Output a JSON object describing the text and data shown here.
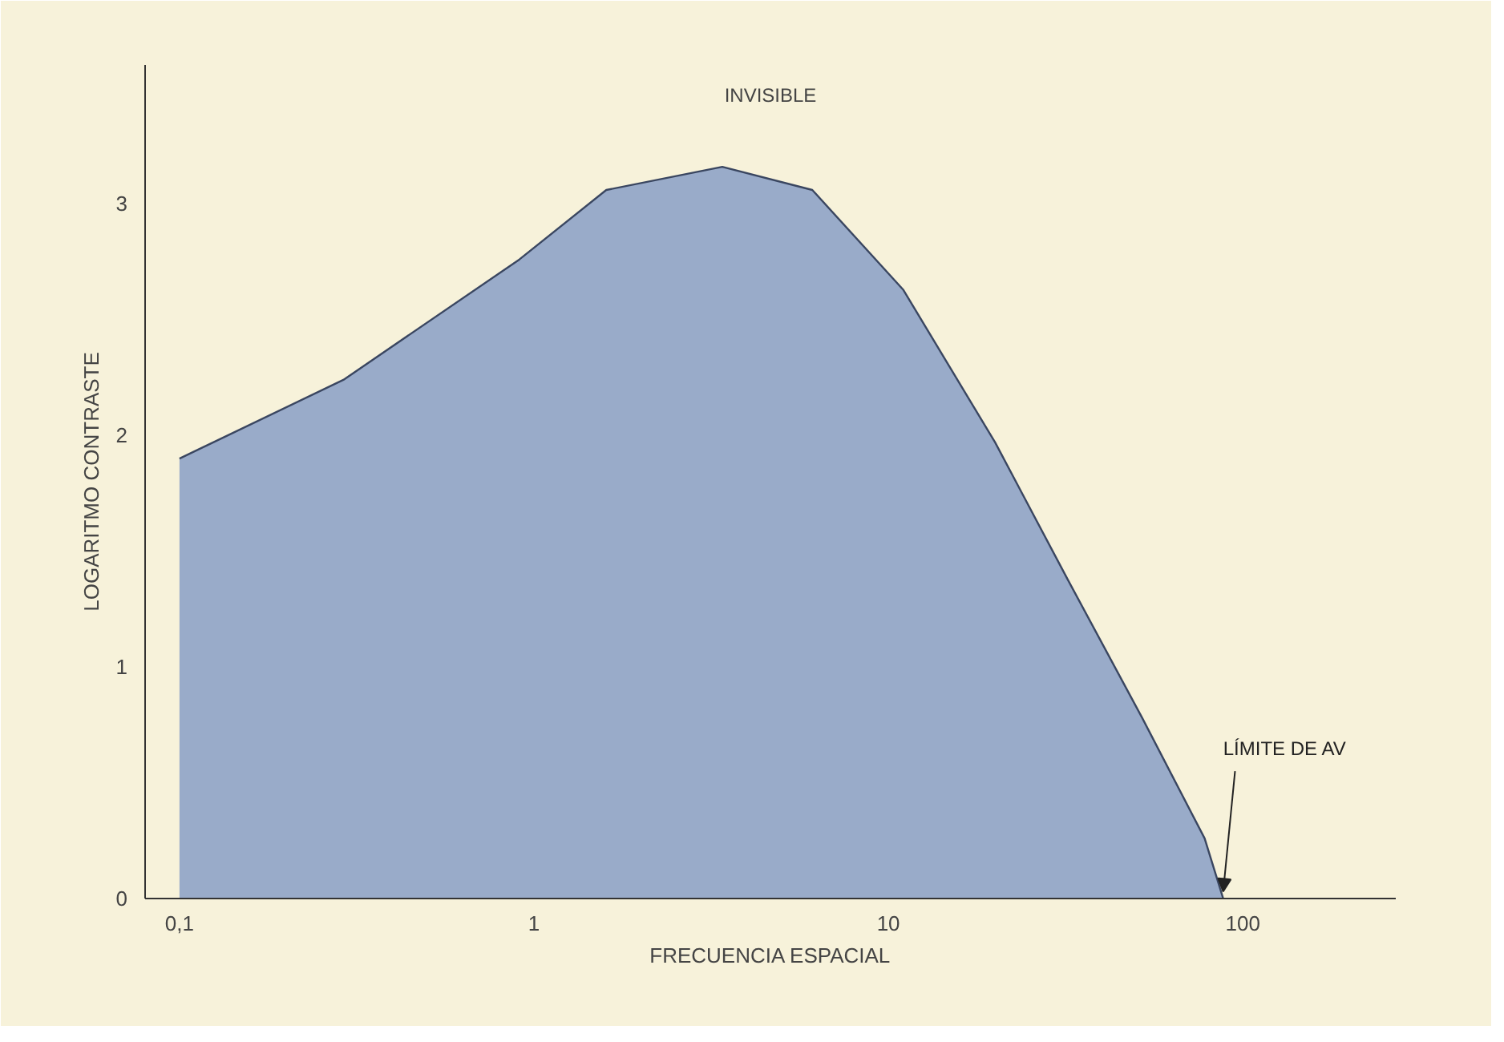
{
  "chart_data": {
    "type": "area",
    "xlabel": "FRECUENCIA ESPACIAL",
    "ylabel": "LOGARITMO CONTRASTE",
    "x": [
      0.1,
      0.29,
      0.91,
      1.6,
      3.4,
      6.1,
      11,
      20,
      32,
      52,
      78,
      88
    ],
    "series": [
      {
        "color": "#8ea3c6",
        "values": [
          1.9,
          2.24,
          2.76,
          3.06,
          3.16,
          3.06,
          2.63,
          1.97,
          1.38,
          0.78,
          0.26,
          0
        ]
      }
    ],
    "log": "x",
    "xlim": [
      0.08,
      270
    ],
    "ylim": [
      0,
      3.6
    ],
    "xticks": [
      {
        "value": 0.1,
        "label": "0,1"
      },
      1,
      10,
      100
    ],
    "yticks": [
      0,
      1,
      2,
      3
    ],
    "grid": false,
    "annotations": [
      "INVISIBLE",
      {
        "text": "LÍMITE DE AV",
        "x": 88,
        "y": 0
      }
    ]
  }
}
